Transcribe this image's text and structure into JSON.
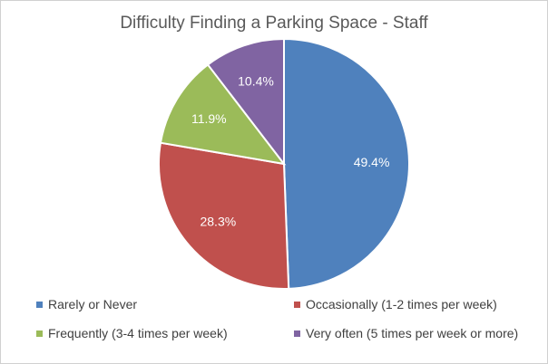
{
  "chart_data": {
    "type": "pie",
    "title": "Difficulty Finding a Parking Space - Staff",
    "categories": [
      "Rarely or Never",
      "Occasionally (1-2 times per week)",
      "Frequently (3-4 times per week)",
      "Very often (5 times per week or more)"
    ],
    "values": [
      49.4,
      28.3,
      11.9,
      10.4
    ],
    "data_labels": [
      "49.4%",
      "28.3%",
      "11.9%",
      "10.4%"
    ],
    "colors": [
      "#4f81bd",
      "#c0504d",
      "#9bbb59",
      "#8064a2"
    ],
    "legend_position": "bottom"
  }
}
